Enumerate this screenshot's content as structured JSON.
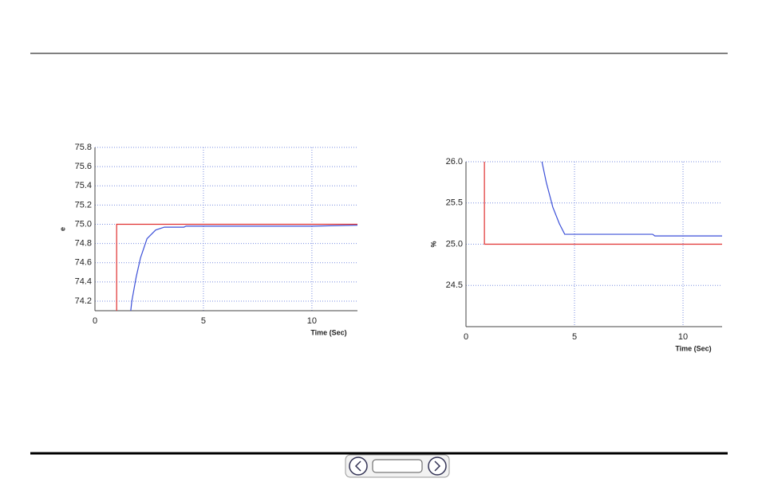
{
  "chart_data": [
    {
      "type": "line",
      "ylabel": "e",
      "xlabel": "Time (Sec)",
      "xlim": [
        0,
        12.1
      ],
      "ylim": [
        74.1,
        75.8
      ],
      "xticks": [
        0,
        5,
        10
      ],
      "yticks": [
        75.8,
        75.6,
        75.4,
        75.2,
        {
          "value": 75.0,
          "label": "75.0"
        },
        74.8,
        74.6,
        74.4,
        74.2
      ],
      "grid": true,
      "series": [
        {
          "color": "#e03030",
          "x": [
            1,
            1,
            12.1
          ],
          "values": [
            74.1,
            75.0,
            75.0
          ]
        },
        {
          "color": "#3b4fd8",
          "x": [
            1.65,
            1.7,
            1.9,
            2.1,
            2.4,
            2.8,
            3.2,
            4.1,
            4.2,
            10,
            12.1
          ],
          "values": [
            74.1,
            74.2,
            74.45,
            74.65,
            74.85,
            74.94,
            74.97,
            74.97,
            74.98,
            74.98,
            74.99
          ]
        }
      ]
    },
    {
      "type": "line",
      "ylabel": "%",
      "xlabel": "Time (Sec)",
      "xlim": [
        0,
        11.8
      ],
      "ylim": [
        24.0,
        26.0
      ],
      "xticks": [
        0,
        5,
        10
      ],
      "yticks": [
        {
          "value": 26.0,
          "label": "26.0"
        },
        25.5,
        {
          "value": 25.0,
          "label": "25.0"
        },
        24.5
      ],
      "grid": true,
      "series": [
        {
          "color": "#e03030",
          "x": [
            0.85,
            0.85,
            11.8
          ],
          "values": [
            26.0,
            25.0,
            25.0
          ]
        },
        {
          "color": "#3b4fd8",
          "x": [
            3.5,
            3.7,
            4.0,
            4.3,
            4.55,
            4.7,
            8.6,
            8.7,
            11.8
          ],
          "values": [
            26.0,
            25.75,
            25.45,
            25.25,
            25.12,
            25.12,
            25.12,
            25.1,
            25.1
          ]
        }
      ]
    }
  ]
}
